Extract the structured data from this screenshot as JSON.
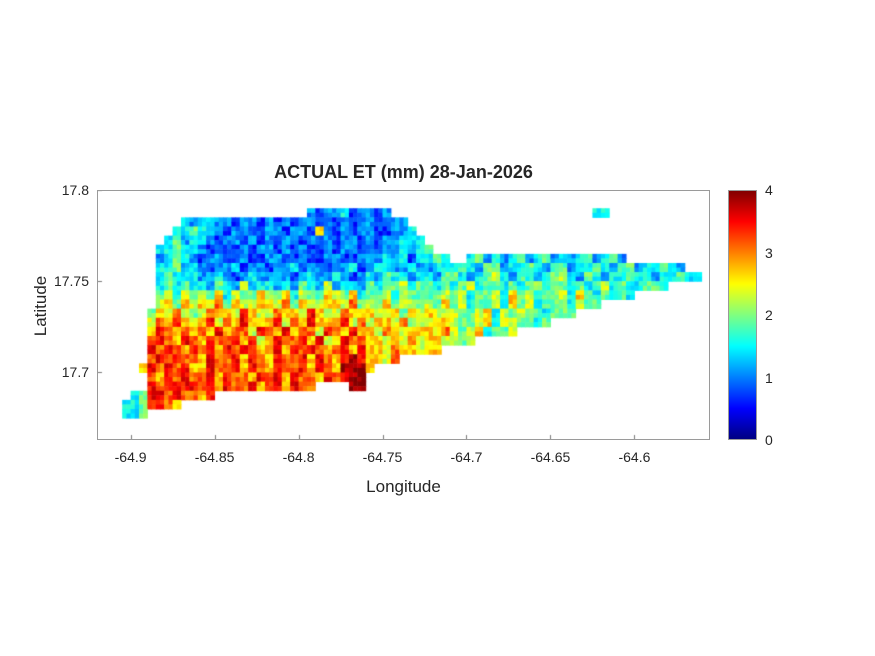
{
  "figure": {
    "background": "#ffffff"
  },
  "chart_data": {
    "type": "heatmap",
    "title": "ACTUAL ET (mm) 28-Jan-2026",
    "xlabel": "Longitude",
    "ylabel": "Latitude",
    "xlim": [
      -64.92,
      -64.555
    ],
    "ylim": [
      17.663,
      17.8
    ],
    "xticks": [
      {
        "label": "-64.9",
        "value": -64.9
      },
      {
        "label": "-64.85",
        "value": -64.85
      },
      {
        "label": "-64.8",
        "value": -64.8
      },
      {
        "label": "-64.75",
        "value": -64.75
      },
      {
        "label": "-64.7",
        "value": -64.7
      },
      {
        "label": "-64.65",
        "value": -64.65
      },
      {
        "label": "-64.6",
        "value": -64.6
      }
    ],
    "yticks": [
      {
        "label": "17.7",
        "value": 17.7
      },
      {
        "label": "17.75",
        "value": 17.75
      },
      {
        "label": "17.8",
        "value": 17.8
      }
    ],
    "colormap": "jet",
    "clim": [
      0,
      4
    ],
    "colorbar": {
      "position": "right",
      "ticks": [
        {
          "label": "0",
          "value": 0
        },
        {
          "label": "1",
          "value": 1
        },
        {
          "label": "2",
          "value": 2
        },
        {
          "label": "3",
          "value": 3
        },
        {
          "label": "4",
          "value": 4
        }
      ]
    },
    "grid": {
      "comment_levels": "char code -> ET value (mm); '.' or absent = no data (ocean)",
      "cols": 72,
      "rows": 26,
      "lon0": -64.915,
      "lat0": 17.795,
      "cell": 0.005,
      "levels": {
        "1": 0.7,
        "2": 1.1,
        "3": 1.5,
        "4": 1.9,
        "5": 2.3,
        "6": 2.7,
        "7": 3.1,
        "8": 3.5,
        "9": 3.9
      },
      "runs": [
        [
          1,
          24,
          10,
          "2122312"
        ],
        [
          1,
          58,
          2,
          "3"
        ],
        [
          2,
          9,
          5,
          "323"
        ],
        [
          2,
          14,
          20,
          "2122121"
        ],
        [
          2,
          34,
          2,
          "2"
        ],
        [
          3,
          8,
          5,
          "334"
        ],
        [
          3,
          13,
          10,
          "2122112"
        ],
        [
          3,
          23,
          6,
          "216212"
        ],
        [
          3,
          29,
          6,
          "1221"
        ],
        [
          3,
          35,
          2,
          "23"
        ],
        [
          4,
          7,
          5,
          "3423"
        ],
        [
          4,
          12,
          19,
          "2122121"
        ],
        [
          4,
          31,
          5,
          "21223"
        ],
        [
          4,
          36,
          2,
          "3"
        ],
        [
          5,
          6,
          5,
          "3343"
        ],
        [
          5,
          11,
          22,
          "2121121221"
        ],
        [
          5,
          33,
          4,
          "2232"
        ],
        [
          5,
          37,
          2,
          "34"
        ],
        [
          6,
          6,
          5,
          "2343"
        ],
        [
          6,
          11,
          20,
          "1221121"
        ],
        [
          6,
          31,
          6,
          "223231"
        ],
        [
          6,
          37,
          4,
          "3343"
        ],
        [
          6,
          43,
          19,
          "34232342"
        ],
        [
          7,
          6,
          5,
          "3342"
        ],
        [
          7,
          11,
          20,
          "2122312"
        ],
        [
          7,
          31,
          10,
          "2332232"
        ],
        [
          7,
          41,
          28,
          "34324423"
        ],
        [
          8,
          6,
          5,
          "3433"
        ],
        [
          8,
          11,
          20,
          "2232123"
        ],
        [
          8,
          31,
          10,
          "3243323"
        ],
        [
          8,
          41,
          20,
          "43234532"
        ],
        [
          8,
          61,
          10,
          "343323"
        ],
        [
          9,
          6,
          5,
          "3434"
        ],
        [
          9,
          11,
          20,
          "3243252332"
        ],
        [
          9,
          31,
          10,
          "4344534"
        ],
        [
          9,
          41,
          20,
          "34534434"
        ],
        [
          9,
          61,
          6,
          "4334"
        ],
        [
          10,
          6,
          5,
          "4535"
        ],
        [
          10,
          11,
          20,
          "54635446"
        ],
        [
          10,
          31,
          10,
          "4453544"
        ],
        [
          10,
          41,
          16,
          "45344536"
        ],
        [
          10,
          57,
          6,
          "4343"
        ],
        [
          11,
          6,
          5,
          "5646"
        ],
        [
          11,
          11,
          20,
          "65746556"
        ],
        [
          11,
          31,
          10,
          "5464554"
        ],
        [
          11,
          41,
          12,
          "45344536"
        ],
        [
          11,
          53,
          6,
          "4435"
        ],
        [
          12,
          5,
          6,
          "46575"
        ],
        [
          12,
          11,
          20,
          "57665865"
        ],
        [
          12,
          31,
          10,
          "6556465"
        ],
        [
          12,
          41,
          10,
          "54456354"
        ],
        [
          12,
          51,
          5,
          "4344"
        ],
        [
          13,
          5,
          6,
          "57686"
        ],
        [
          13,
          11,
          20,
          "68576866"
        ],
        [
          13,
          31,
          10,
          "5665745"
        ],
        [
          13,
          41,
          8,
          "5445635"
        ],
        [
          13,
          49,
          4,
          "4434"
        ],
        [
          14,
          5,
          6,
          "68767"
        ],
        [
          14,
          11,
          20,
          "76867758"
        ],
        [
          14,
          31,
          10,
          "6576566"
        ],
        [
          14,
          41,
          8,
          "5456344"
        ],
        [
          15,
          5,
          6,
          "78768"
        ],
        [
          15,
          11,
          20,
          "68778685"
        ],
        [
          15,
          31,
          10,
          "6656575"
        ],
        [
          15,
          41,
          3,
          "545"
        ],
        [
          16,
          5,
          6,
          "87876"
        ],
        [
          16,
          11,
          20,
          "78687876"
        ],
        [
          16,
          31,
          9,
          "6657665"
        ],
        [
          17,
          5,
          6,
          "78787"
        ],
        [
          17,
          11,
          18,
          "68778687"
        ],
        [
          17,
          29,
          2,
          "98"
        ],
        [
          17,
          31,
          4,
          "6657"
        ],
        [
          18,
          4,
          7,
          "687878"
        ],
        [
          18,
          11,
          17,
          "68778687"
        ],
        [
          18,
          28,
          3,
          "9"
        ],
        [
          18,
          31,
          1,
          "6"
        ],
        [
          19,
          5,
          6,
          "76878"
        ],
        [
          19,
          11,
          16,
          "78687768"
        ],
        [
          19,
          27,
          1,
          "7"
        ],
        [
          19,
          28,
          3,
          "899"
        ],
        [
          20,
          5,
          6,
          "87888"
        ],
        [
          20,
          11,
          14,
          "78687786"
        ],
        [
          20,
          29,
          2,
          "9"
        ],
        [
          21,
          3,
          2,
          "34"
        ],
        [
          21,
          5,
          8,
          "8878776"
        ],
        [
          22,
          2,
          3,
          "334"
        ],
        [
          22,
          5,
          4,
          "7876"
        ],
        [
          23,
          2,
          3,
          "334"
        ]
      ]
    }
  }
}
